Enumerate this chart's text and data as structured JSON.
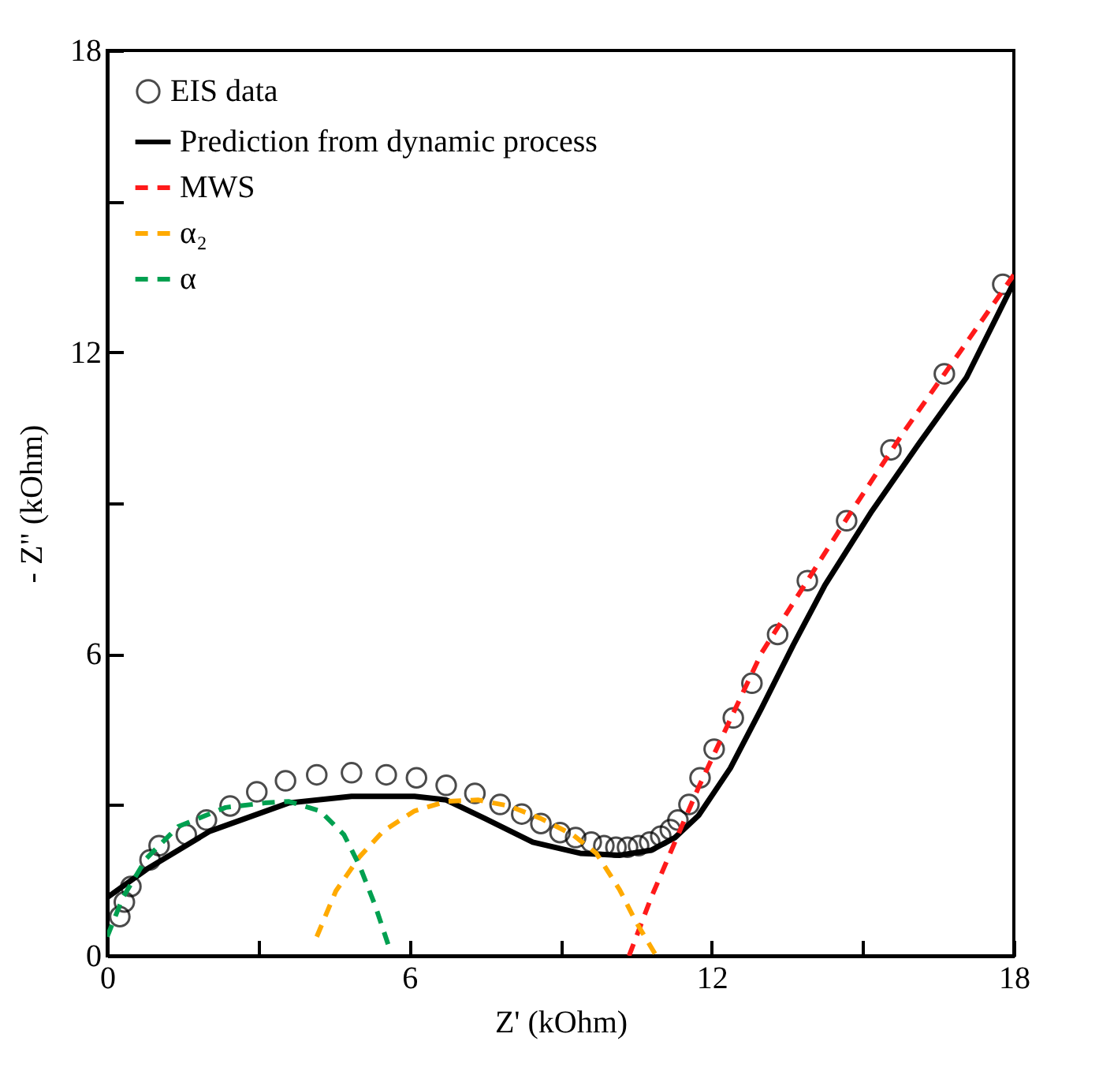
{
  "chart_data": {
    "type": "line",
    "xlabel": "Z' (kOhm)",
    "ylabel": "- Z\" (kOhm)",
    "xlim": [
      0,
      18
    ],
    "ylim": [
      0,
      18
    ],
    "xticks": [
      0,
      {
        "value": 3,
        "label": null
      },
      6,
      {
        "value": 9,
        "label": null
      },
      12,
      {
        "value": 15,
        "label": null
      },
      18
    ],
    "yticks": [
      0,
      {
        "value": 3,
        "label": null
      },
      6,
      {
        "value": 9,
        "label": null
      },
      12,
      {
        "value": 15,
        "label": null
      },
      18
    ],
    "grid": false,
    "legend": "top left",
    "series": [
      {
        "name": "EIS data",
        "type": "scatter",
        "marker": "circle",
        "color": "#000000",
        "x": [
          0.25,
          0.34,
          0.47,
          0.85,
          1.03,
          1.57,
          1.97,
          2.44,
          2.97,
          3.54,
          4.16,
          4.85,
          5.54,
          6.14,
          6.73,
          7.3,
          7.8,
          8.23,
          8.61,
          8.99,
          9.3,
          9.61,
          9.86,
          10.1,
          10.33,
          10.55,
          10.77,
          10.99,
          11.18,
          11.33,
          11.55,
          11.77,
          12.05,
          12.43,
          12.8,
          13.31,
          13.9,
          14.68,
          15.56,
          16.62,
          17.78
        ],
        "values": [
          0.78,
          1.07,
          1.38,
          1.91,
          2.19,
          2.41,
          2.7,
          2.98,
          3.26,
          3.48,
          3.6,
          3.64,
          3.6,
          3.54,
          3.39,
          3.23,
          3.01,
          2.82,
          2.63,
          2.45,
          2.35,
          2.26,
          2.19,
          2.16,
          2.16,
          2.19,
          2.26,
          2.38,
          2.51,
          2.7,
          3.01,
          3.54,
          4.11,
          4.73,
          5.42,
          6.39,
          7.46,
          8.65,
          10.06,
          11.57,
          13.35
        ]
      },
      {
        "name": "Prediction from dynamic process",
        "type": "line",
        "line_style": "solid",
        "color": "#000000",
        "x": [
          0,
          0.78,
          2.04,
          3.6,
          4.85,
          6.1,
          6.73,
          7.5,
          8.45,
          9.39,
          10.17,
          10.8,
          11.27,
          11.74,
          12.37,
          12.99,
          13.62,
          14.25,
          15.18,
          16.12,
          17.06,
          18
        ],
        "values": [
          1.16,
          1.72,
          2.48,
          3.04,
          3.17,
          3.17,
          3.1,
          2.73,
          2.26,
          2.04,
          2.0,
          2.1,
          2.35,
          2.79,
          3.73,
          4.92,
          6.18,
          7.37,
          8.84,
          10.19,
          11.5,
          13.39
        ]
      },
      {
        "name": "MWS",
        "type": "line",
        "line_style": "dashed",
        "color": "#ff1a1a",
        "x": [
          10.36,
          10.8,
          11.27,
          11.74,
          12.37,
          12.99,
          13.78,
          14.72,
          15.81,
          16.91,
          18
        ],
        "values": [
          0,
          1.16,
          2.26,
          3.35,
          4.7,
          6.02,
          7.27,
          8.75,
          10.41,
          11.98,
          13.54
        ]
      },
      {
        "name": "α₂",
        "type": "line",
        "line_style": "dashed",
        "color": "#ffaa00",
        "x": [
          4.16,
          4.54,
          5.01,
          5.48,
          6.1,
          6.73,
          7.36,
          7.98,
          8.61,
          9.24,
          9.71,
          10.17,
          10.49,
          10.9
        ],
        "values": [
          0.38,
          1.29,
          1.97,
          2.48,
          2.88,
          3.07,
          3.1,
          2.98,
          2.73,
          2.41,
          2.04,
          1.32,
          0.69,
          0
        ]
      },
      {
        "name": "α",
        "type": "line",
        "line_style": "dashed",
        "color": "#00a050",
        "x": [
          0,
          0.31,
          0.78,
          1.41,
          2.35,
          3.13,
          3.6,
          4.23,
          4.7,
          5.01,
          5.32,
          5.6
        ],
        "values": [
          0.38,
          1.16,
          1.94,
          2.57,
          2.95,
          3.04,
          3.07,
          2.88,
          2.41,
          1.79,
          1.0,
          0.16
        ]
      }
    ]
  }
}
